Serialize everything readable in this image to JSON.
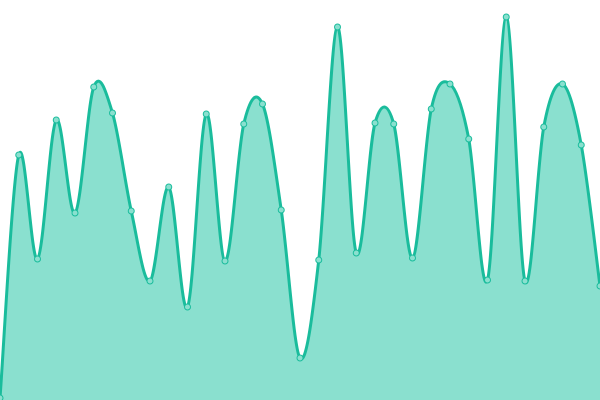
{
  "chart_data": {
    "type": "area",
    "title": "",
    "xlabel": "",
    "ylabel": "",
    "grid": false,
    "axes_visible": false,
    "x": [
      0,
      1,
      2,
      3,
      4,
      5,
      6,
      7,
      8,
      9,
      10,
      11,
      12,
      13,
      14,
      15,
      16,
      17,
      18,
      19,
      20,
      21,
      22,
      23,
      24,
      25,
      26,
      27,
      28,
      29,
      30,
      31,
      32
    ],
    "values": [
      2,
      245,
      141,
      280,
      187,
      313,
      287,
      189,
      119,
      213,
      93,
      286,
      139,
      276,
      296,
      190,
      42,
      140,
      373,
      147,
      277,
      276,
      142,
      291,
      316,
      261,
      120,
      383,
      119,
      273,
      316,
      255,
      114
    ],
    "ylim": [
      0,
      400
    ],
    "colors": {
      "line": "#1abc9c",
      "fill": "#8ae0cf",
      "marker_fill": "#8ae0cf"
    },
    "smooth": true,
    "markers": true
  }
}
